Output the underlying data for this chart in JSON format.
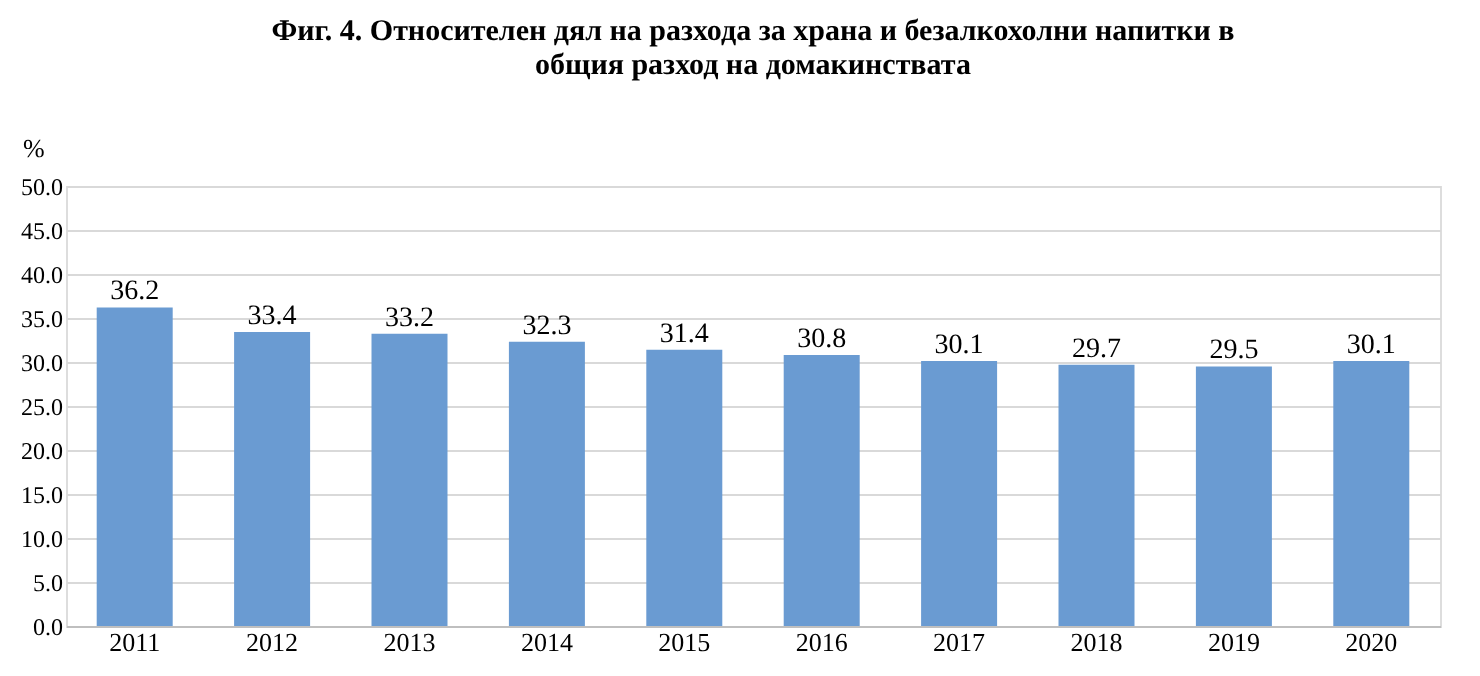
{
  "chart_data": {
    "type": "bar",
    "title": [
      "Фиг. 4. Относителен дял на разхода за храна и безалкохолни напитки в",
      "общия разход на домакинствата"
    ],
    "ylabel": "%",
    "categories": [
      "2011",
      "2012",
      "2013",
      "2014",
      "2015",
      "2016",
      "2017",
      "2018",
      "2019",
      "2020"
    ],
    "values": [
      36.2,
      33.4,
      33.2,
      32.3,
      31.4,
      30.8,
      30.1,
      29.7,
      29.5,
      30.1
    ],
    "color": "#6a9bd2",
    "ylim": [
      0,
      50
    ],
    "yticks": [
      {
        "value": 0,
        "label": "0.0"
      },
      {
        "value": 5,
        "label": "5.0"
      },
      {
        "value": 10,
        "label": "10.0"
      },
      {
        "value": 15,
        "label": "15.0"
      },
      {
        "value": 20,
        "label": "20.0"
      },
      {
        "value": 25,
        "label": "25.0"
      },
      {
        "value": 30,
        "label": "30.0"
      },
      {
        "value": 35,
        "label": "35.0"
      },
      {
        "value": 40,
        "label": "40.0"
      },
      {
        "value": 45,
        "label": "45.0"
      },
      {
        "value": 50,
        "label": "50.0"
      }
    ],
    "grid": "y",
    "data_labels": true
  }
}
